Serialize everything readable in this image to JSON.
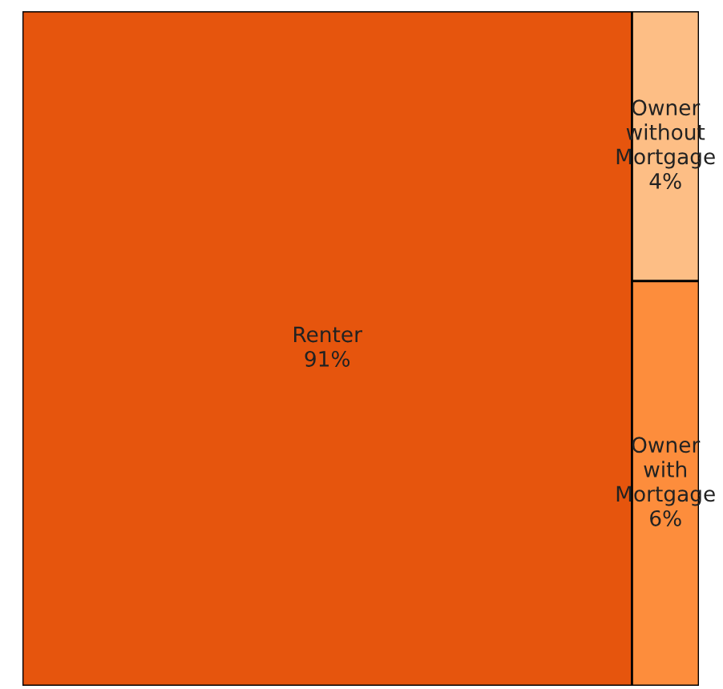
{
  "chart_data": {
    "type": "other",
    "categories": [
      "Renter",
      "Owner without Mortgage",
      "Owner with Mortgage"
    ],
    "values": [
      91,
      4,
      6
    ],
    "value_labels": [
      "91%",
      "4%",
      "6%"
    ],
    "colors": [
      "#e6550d",
      "#fdbe85",
      "#fd8d3c"
    ]
  }
}
